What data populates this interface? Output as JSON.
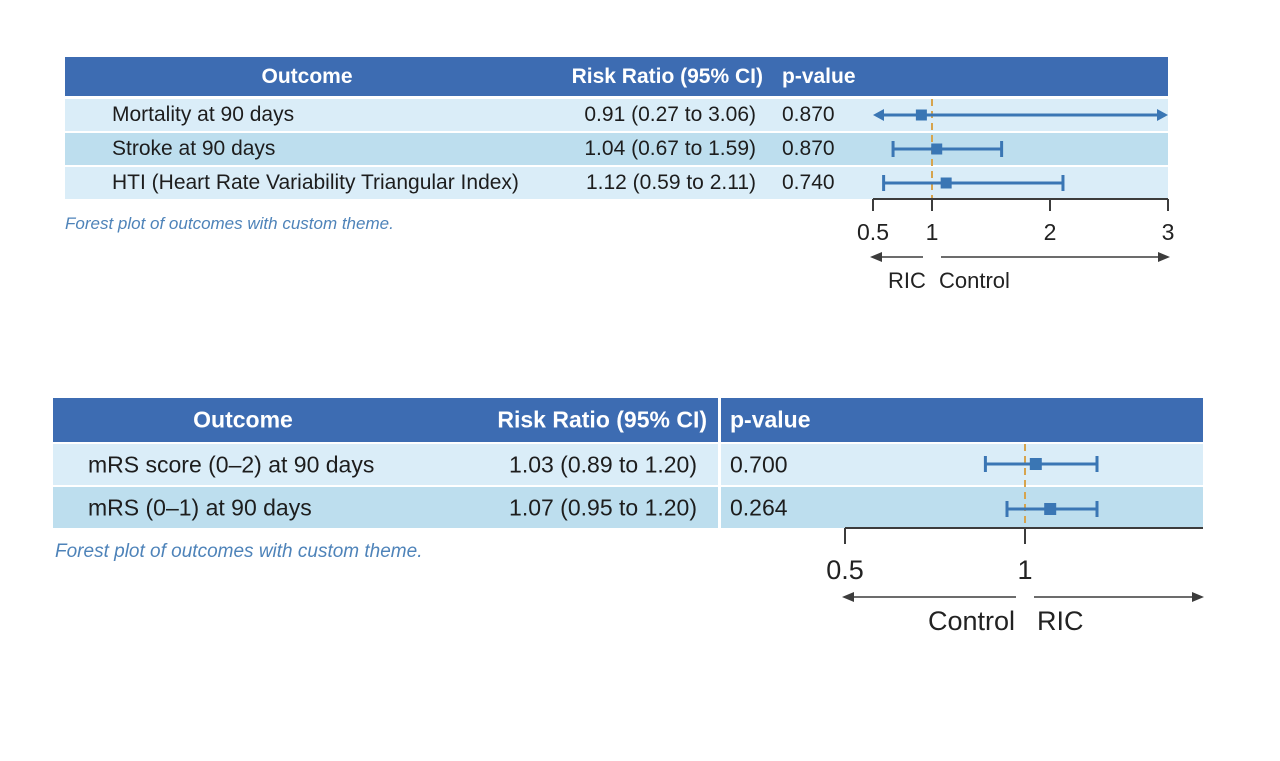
{
  "colors": {
    "header_bg": "#3d6cb2",
    "row_light": "#daedf8",
    "row_mid": "#bddeee",
    "marker": "#3a76b4",
    "reference_line": "#d6a44e",
    "axis": "#3c3c3c",
    "tick_text": "#222222",
    "caption_text": "#4e83b9"
  },
  "plots": [
    {
      "header": {
        "outcome": "Outcome",
        "risk_ratio": "Risk Ratio (95% CI)",
        "p_value": "p-value"
      },
      "rows": [
        {
          "outcome": "Mortality at 90 days",
          "risk_ratio": "0.91 (0.27 to 3.06)",
          "p_value": "0.870"
        },
        {
          "outcome": "Stroke at 90 days",
          "risk_ratio": "1.04 (0.67 to 1.59)",
          "p_value": "0.870"
        },
        {
          "outcome": "HTI (Heart Rate Variability Triangular Index)",
          "risk_ratio": "1.12 (0.59 to 2.11)",
          "p_value": "0.740"
        }
      ],
      "caption": "Forest plot of outcomes with custom theme."
    },
    {
      "header": {
        "outcome": "Outcome",
        "risk_ratio": "Risk Ratio (95% CI)",
        "p_value": "p-value"
      },
      "rows": [
        {
          "outcome": "mRS score (0–2) at 90 days",
          "risk_ratio": "1.03 (0.89 to 1.20)",
          "p_value": "0.700"
        },
        {
          "outcome": "mRS (0–1) at 90 days",
          "risk_ratio": "1.07 (0.95 to 1.20)",
          "p_value": "0.264"
        }
      ],
      "caption": "Forest plot of outcomes with custom theme."
    }
  ],
  "chart_data": [
    {
      "type": "scatter",
      "subtype": "forest-plot",
      "title": "",
      "caption": "Forest plot of outcomes with custom theme.",
      "points": [
        {
          "label": "Mortality at 90 days",
          "estimate": 0.91,
          "ci_low": 0.27,
          "ci_high": 3.06,
          "p_value": 0.87
        },
        {
          "label": "Stroke at 90 days",
          "estimate": 1.04,
          "ci_low": 0.67,
          "ci_high": 1.59,
          "p_value": 0.87
        },
        {
          "label": "HTI (Heart Rate Variability Triangular Index)",
          "estimate": 1.12,
          "ci_low": 0.59,
          "ci_high": 2.11,
          "p_value": 0.74
        }
      ],
      "scale": "linear",
      "xlim": [
        0.5,
        3
      ],
      "xticks": [
        0.5,
        1,
        2,
        3
      ],
      "xtick_labels": [
        "0.5",
        "1",
        "2",
        "3"
      ],
      "reference_line": 1,
      "arrow_labels": {
        "left": "RIC",
        "right": "Control"
      },
      "grid": false,
      "legend": "none"
    },
    {
      "type": "scatter",
      "subtype": "forest-plot",
      "title": "",
      "caption": "Forest plot of outcomes with custom theme.",
      "points": [
        {
          "label": "mRS score (0–2) at 90 days",
          "estimate": 1.03,
          "ci_low": 0.89,
          "ci_high": 1.2,
          "p_value": 0.7
        },
        {
          "label": "mRS (0–1) at 90 days",
          "estimate": 1.07,
          "ci_low": 0.95,
          "ci_high": 1.2,
          "p_value": 0.264
        }
      ],
      "scale": "linear",
      "xlim": [
        0.5,
        1.5
      ],
      "xticks": [
        0.5,
        1
      ],
      "xtick_labels": [
        "0.5",
        "1"
      ],
      "reference_line": 1,
      "arrow_labels": {
        "left": "Control",
        "right": "RIC"
      },
      "grid": false,
      "legend": "none"
    }
  ]
}
